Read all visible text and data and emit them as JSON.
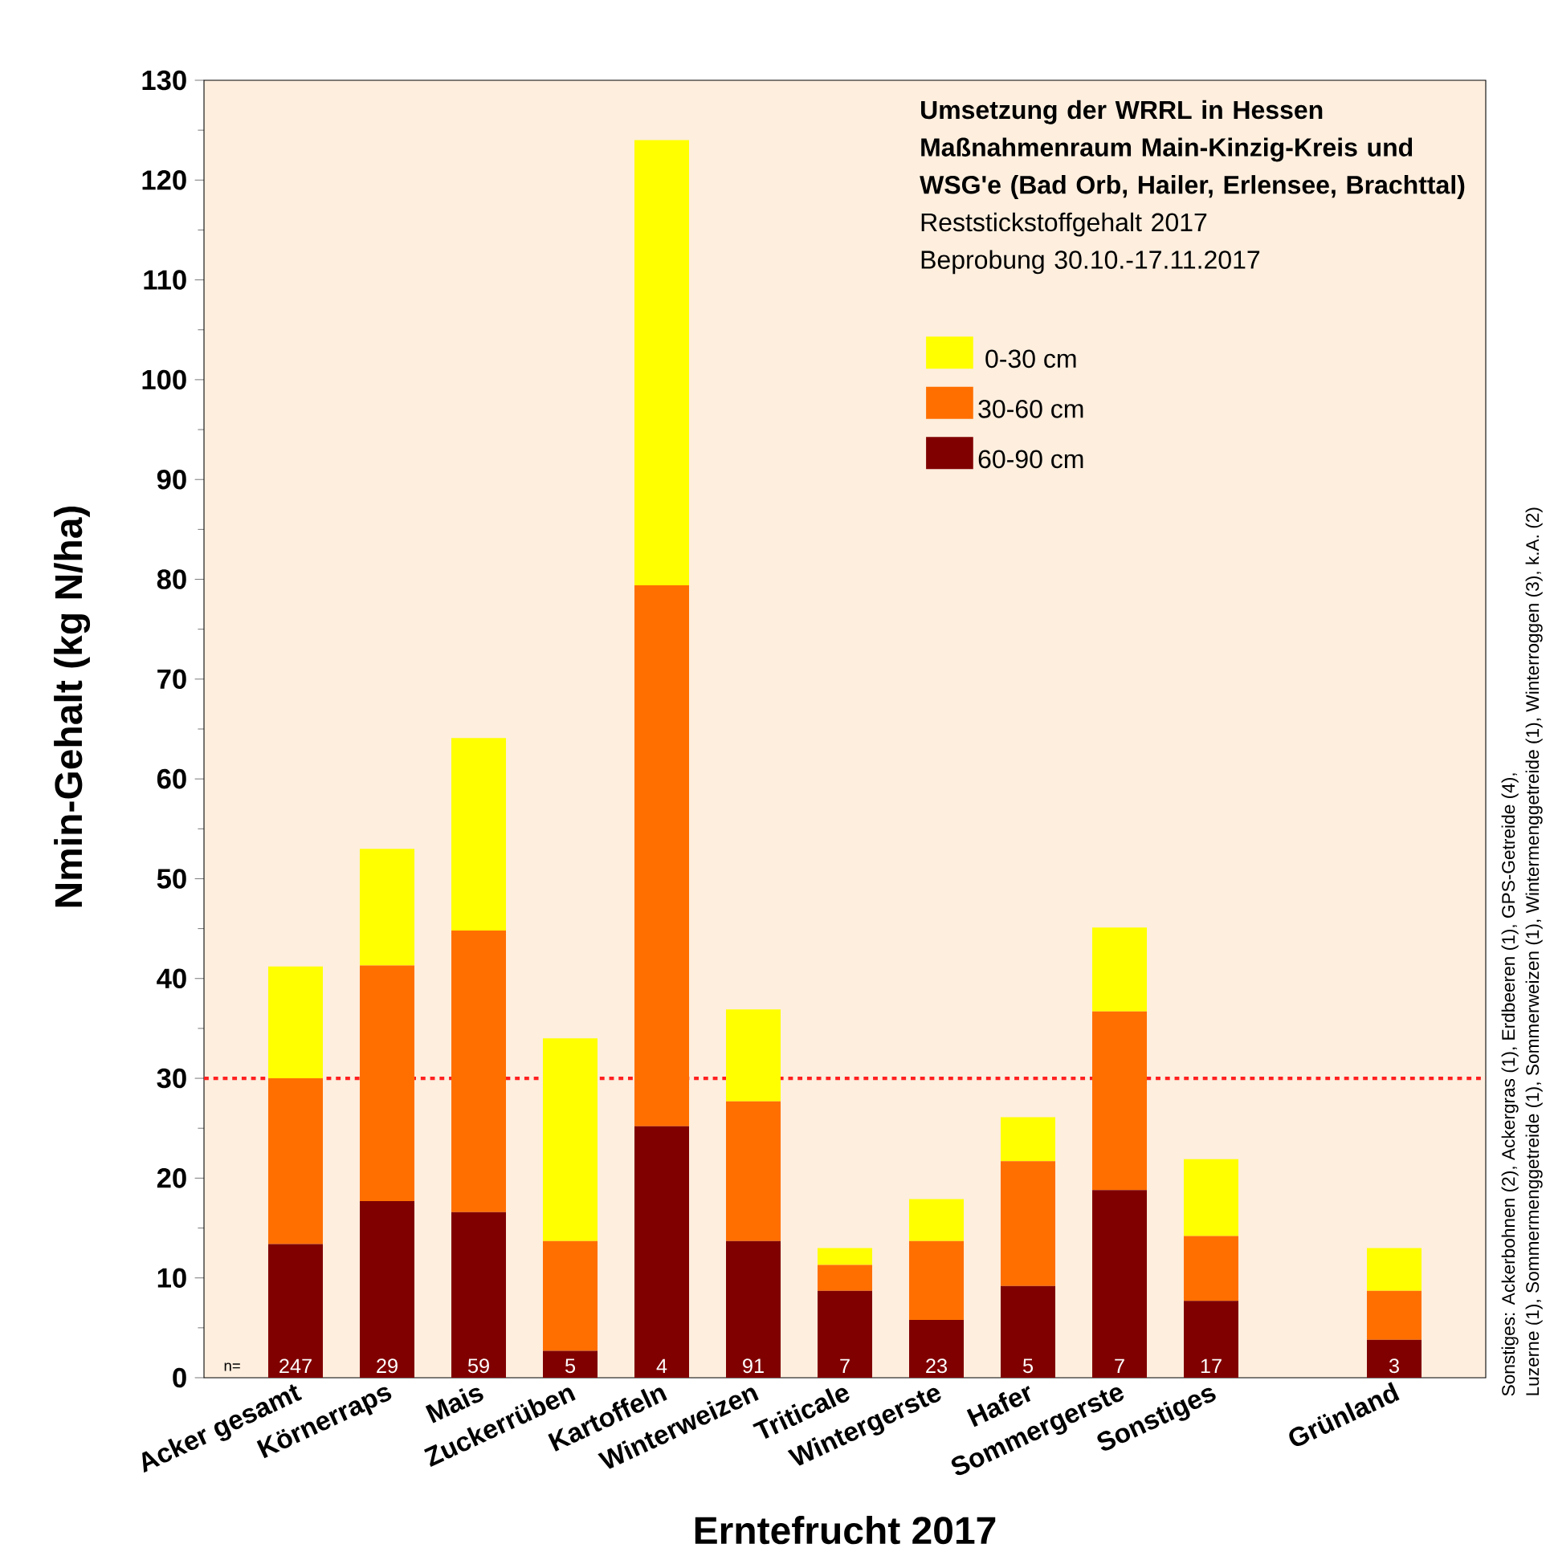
{
  "chart_data": {
    "type": "bar",
    "stacked": true,
    "title": "Umsetzung der WRRL in Hessen Maßnahmenraum Main-Kinzig-Kreis und WSG'e (Bad Orb, Hailer, Erlensee, Brachttal)",
    "subtitle": "Reststickstoffgehalt 2017",
    "xlabel": "Erntefrucht 2017",
    "ylabel": "Nmin-Gehalt (kg N/ha)",
    "categories": [
      "Acker gesamt",
      "Körnerraps",
      "Mais",
      "Zuckerrüben",
      "Kartoffeln",
      "Winterweizen",
      "Triticale",
      "Wintergerste",
      "Hafer",
      "Sommergerste",
      "Sonstiges",
      null,
      "Grünland"
    ],
    "series": [
      {
        "name": "60-90 cm",
        "color": "#800000",
        "values": [
          13.4,
          17.7,
          16.6,
          2.7,
          25.2,
          13.7,
          8.7,
          5.8,
          9.2,
          18.8,
          7.7,
          null,
          3.8
        ]
      },
      {
        "name": "30-60 cm",
        "color": "#ff6f00",
        "values": [
          16.6,
          23.6,
          28.2,
          11.0,
          54.2,
          14.0,
          2.6,
          7.9,
          12.5,
          17.9,
          6.5,
          null,
          4.9
        ]
      },
      {
        "name": "0-30 cm",
        "color": "#ffff00",
        "values": [
          11.2,
          11.7,
          19.3,
          20.3,
          44.6,
          9.2,
          1.7,
          4.2,
          4.4,
          8.4,
          7.7,
          null,
          4.3
        ]
      }
    ],
    "ylim": [
      0,
      130
    ],
    "yticks": [
      0,
      10,
      20,
      30,
      40,
      50,
      60,
      70,
      80,
      90,
      100,
      110,
      120,
      130
    ],
    "ref_lines": [
      {
        "axis": "y",
        "value": 30,
        "color": "#ff2020",
        "line_style": "dotted"
      }
    ],
    "legend": "top right",
    "annotations": [
      {
        "text": "247",
        "x": "Acker gesamt",
        "y": 0
      },
      {
        "text": "29",
        "x": "Körnerraps",
        "y": 0
      },
      {
        "text": "59",
        "x": "Mais",
        "y": 0
      },
      {
        "text": "5",
        "x": "Zuckerrüben",
        "y": 0
      },
      {
        "text": "4",
        "x": "Kartoffeln",
        "y": 0
      },
      {
        "text": "91",
        "x": "Winterweizen",
        "y": 0
      },
      {
        "text": "7",
        "x": "Triticale",
        "y": 0
      },
      {
        "text": "23",
        "x": "Wintergerste",
        "y": 0
      },
      {
        "text": "5",
        "x": "Hafer",
        "y": 0
      },
      {
        "text": "7",
        "x": "Sommergerste",
        "y": 0
      },
      {
        "text": "17",
        "x": "Sonstiges",
        "y": 0
      },
      {
        "text": "3",
        "x": "Grünland",
        "y": 0
      },
      "n=",
      "Beprobung 30.10.-17.11.2017",
      "Sonstiges: Ackerbohnen (2), Ackergras (1), Erdbeeren (1), GPS-Getreide (4),",
      "Luzerne (1), Sommermenggetreide (1), Sommerweizen (1), Wintermenggetreide (1), Winterroggen (3), k.A. (2)"
    ]
  }
}
